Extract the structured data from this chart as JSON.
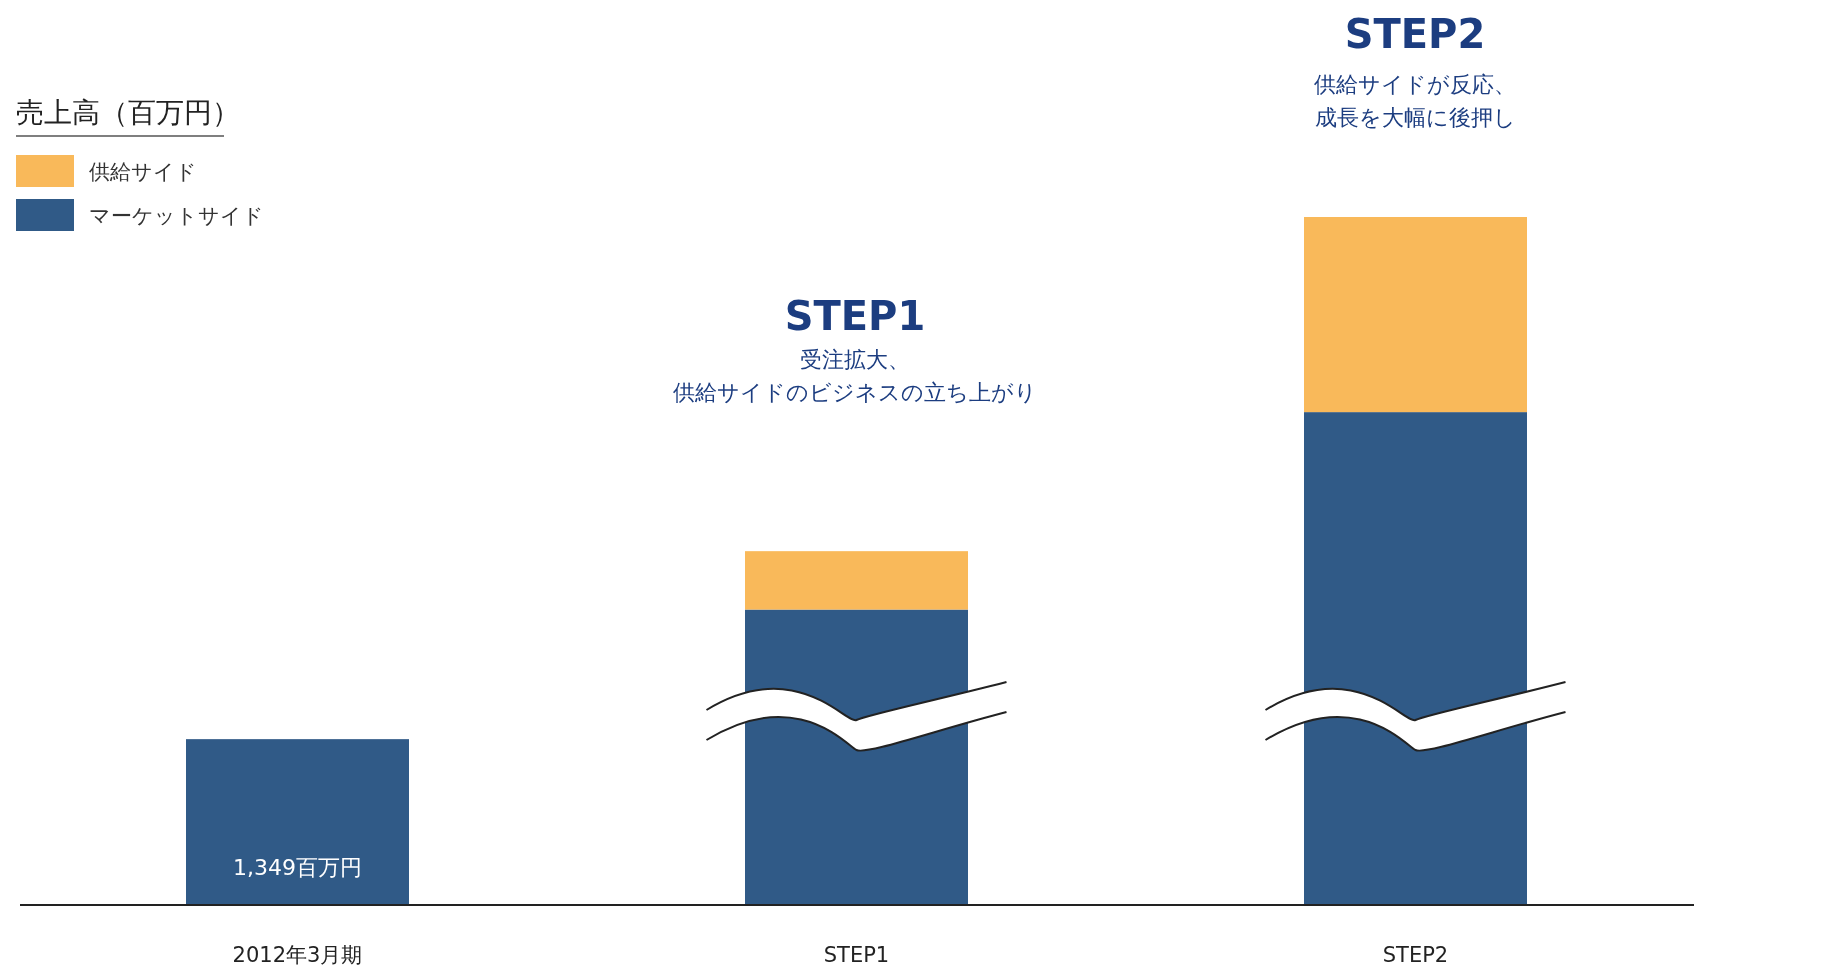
{
  "chart_data": {
    "type": "bar",
    "stacked": true,
    "legend": "top left",
    "legend_title": "売上高（百万円）",
    "categories": [
      "2012年3月期",
      "STEP1",
      "STEP2"
    ],
    "series": [
      {
        "name": "マーケットサイド",
        "color": "#305a87",
        "values": [
          1349,
          2403,
          4009
        ],
        "value_labels": [
          "1,349百万円",
          null,
          null
        ]
      },
      {
        "name": "供給サイド",
        "color": "#f9b95a",
        "values": [
          null,
          475,
          1587
        ]
      }
    ],
    "annotations": [
      "STEP1",
      "受注拡大、供給サイドのビジネスの立ち上がり",
      "STEP2",
      "供給サイドが反応、成長を大幅に後押し"
    ]
  }
}
